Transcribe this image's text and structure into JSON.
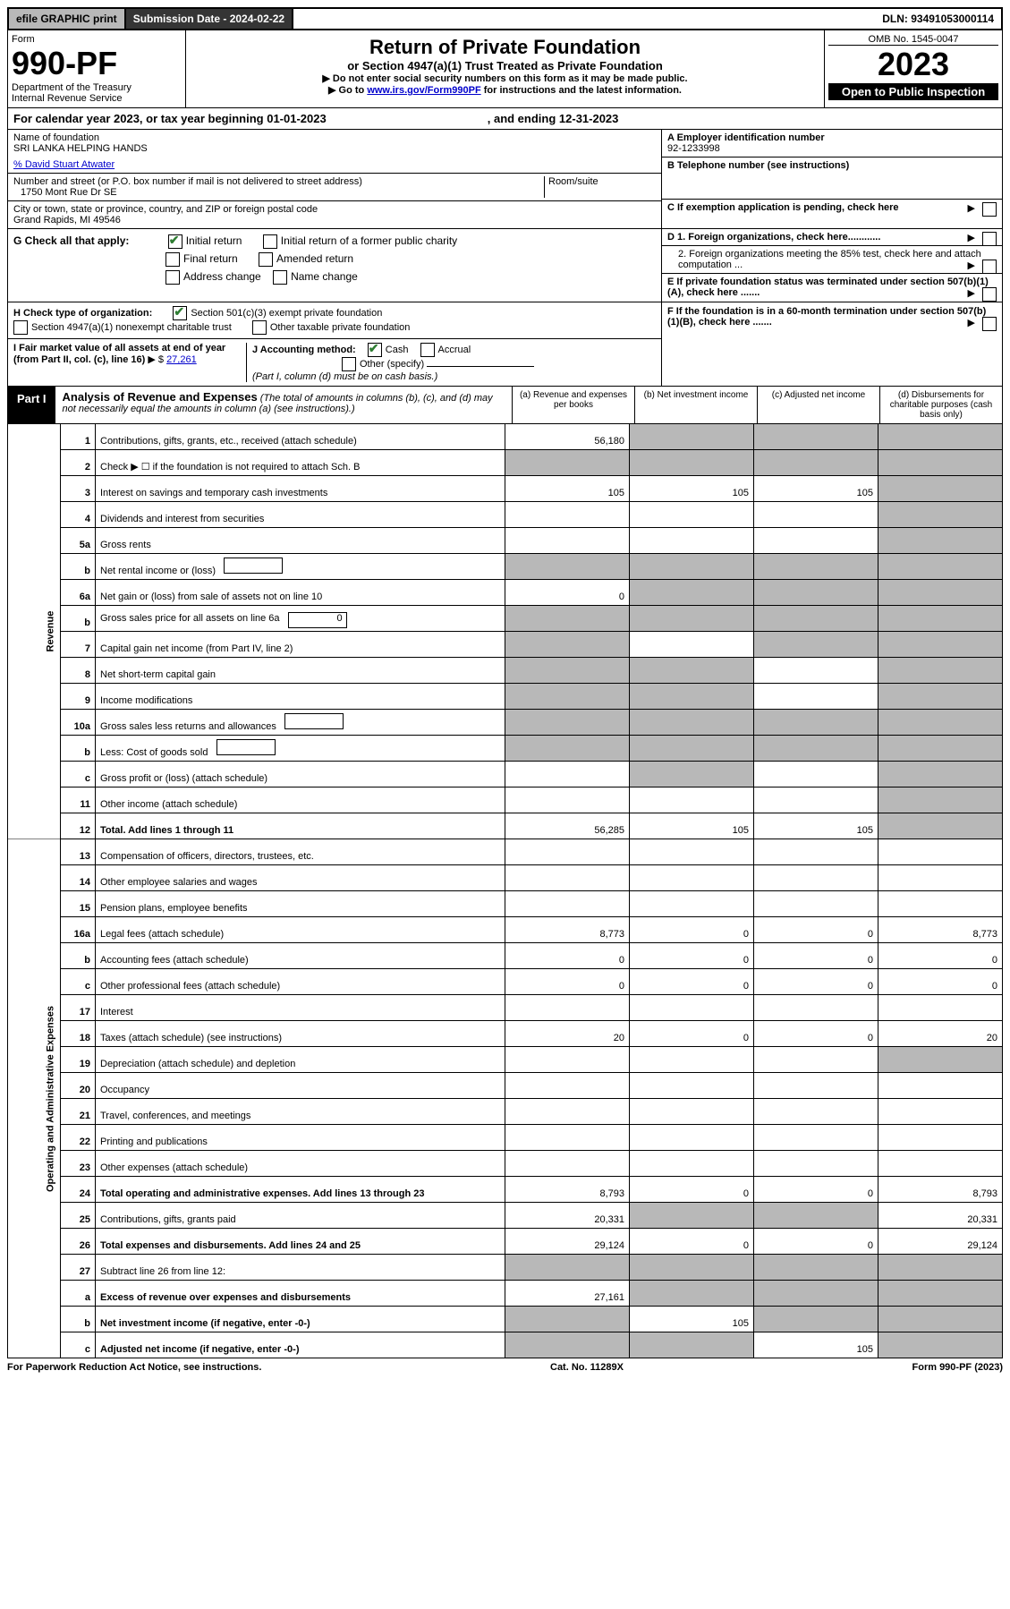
{
  "topbar": {
    "efile": "efile GRAPHIC print",
    "subdate": "Submission Date - 2024-02-22",
    "dln": "DLN: 93491053000114"
  },
  "header": {
    "form": "Form",
    "formno": "990-PF",
    "dept": "Department of the Treasury",
    "irs": "Internal Revenue Service",
    "title": "Return of Private Foundation",
    "subtitle": "or Section 4947(a)(1) Trust Treated as Private Foundation",
    "instr1": "▶ Do not enter social security numbers on this form as it may be made public.",
    "instr2_pre": "▶ Go to ",
    "instr2_link": "www.irs.gov/Form990PF",
    "instr2_post": " for instructions and the latest information.",
    "omb": "OMB No. 1545-0047",
    "year": "2023",
    "open": "Open to Public Inspection"
  },
  "cy": {
    "text": "For calendar year 2023, or tax year beginning 01-01-2023",
    "end": ", and ending 12-31-2023"
  },
  "id": {
    "name_lbl": "Name of foundation",
    "name": "SRI LANKA HELPING HANDS",
    "care": "% David Stuart Atwater",
    "addr_lbl": "Number and street (or P.O. box number if mail is not delivered to street address)",
    "addr": "1750 Mont Rue Dr SE",
    "room_lbl": "Room/suite",
    "city_lbl": "City or town, state or province, country, and ZIP or foreign postal code",
    "city": "Grand Rapids, MI  49546",
    "a_lbl": "A Employer identification number",
    "a_val": "92-1233998",
    "b_lbl": "B Telephone number (see instructions)",
    "c_lbl": "C If exemption application is pending, check here"
  },
  "g": {
    "label": "G Check all that apply:",
    "opts": [
      "Initial return",
      "Initial return of a former public charity",
      "Final return",
      "Amended return",
      "Address change",
      "Name change"
    ],
    "checked": [
      true,
      false,
      false,
      false,
      false,
      false
    ],
    "d1": "D 1. Foreign organizations, check here............",
    "d2": "2. Foreign organizations meeting the 85% test, check here and attach computation ...",
    "e": "E  If private foundation status was terminated under section 507(b)(1)(A), check here ......."
  },
  "h": {
    "label": "H Check type of organization:",
    "opt1": "Section 501(c)(3) exempt private foundation",
    "opt2": "Section 4947(a)(1) nonexempt charitable trust",
    "opt3": "Other taxable private foundation",
    "i_lbl": "I Fair market value of all assets at end of year (from Part II, col. (c), line 16)",
    "i_val": "27,261",
    "j_lbl": "J Accounting method:",
    "j_cash": "Cash",
    "j_accr": "Accrual",
    "j_other": "Other (specify)",
    "j_note": "(Part I, column (d) must be on cash basis.)",
    "f": "F  If the foundation is in a 60-month termination under section 507(b)(1)(B), check here ......."
  },
  "part1": {
    "label": "Part I",
    "title": "Analysis of Revenue and Expenses",
    "note": "(The total of amounts in columns (b), (c), and (d) may not necessarily equal the amounts in column (a) (see instructions).)",
    "cols": [
      "(a)   Revenue and expenses per books",
      "(b)   Net investment income",
      "(c)   Adjusted net income",
      "(d)   Disbursements for charitable purposes (cash basis only)"
    ]
  },
  "sidelabels": {
    "rev": "Revenue",
    "exp": "Operating and Administrative Expenses"
  },
  "lines": [
    {
      "n": "1",
      "d": "Contributions, gifts, grants, etc., received (attach schedule)",
      "a": "56,180",
      "b": null,
      "c": null,
      "dg": true,
      "bg": true,
      "cg": true
    },
    {
      "n": "2",
      "d": "Check ▶ ☐ if the foundation is not required to attach Sch. B",
      "nocols": true
    },
    {
      "n": "3",
      "d": "Interest on savings and temporary cash investments",
      "a": "105",
      "b": "105",
      "c": "105"
    },
    {
      "n": "4",
      "d": "Dividends and interest from securities",
      "a": "",
      "b": "",
      "c": ""
    },
    {
      "n": "5a",
      "d": "Gross rents",
      "a": "",
      "b": "",
      "c": ""
    },
    {
      "n": "b",
      "d": "Net rental income or (loss)",
      "inline": "",
      "nocols": true
    },
    {
      "n": "6a",
      "d": "Net gain or (loss) from sale of assets not on line 10",
      "a": "0",
      "bg": true,
      "cg": true
    },
    {
      "n": "b",
      "d": "Gross sales price for all assets on line 6a",
      "inline": "0",
      "nocols": true
    },
    {
      "n": "7",
      "d": "Capital gain net income (from Part IV, line 2)",
      "ag": true,
      "b": "",
      "cg": true
    },
    {
      "n": "8",
      "d": "Net short-term capital gain",
      "ag": true,
      "bg": true,
      "c": ""
    },
    {
      "n": "9",
      "d": "Income modifications",
      "ag": true,
      "bg": true,
      "c": ""
    },
    {
      "n": "10a",
      "d": "Gross sales less returns and allowances",
      "inline": "",
      "nocols": true
    },
    {
      "n": "b",
      "d": "Less: Cost of goods sold",
      "inline": "",
      "nocols": true
    },
    {
      "n": "c",
      "d": "Gross profit or (loss) (attach schedule)",
      "a": "",
      "bg": true,
      "c": ""
    },
    {
      "n": "11",
      "d": "Other income (attach schedule)",
      "a": "",
      "b": "",
      "c": ""
    },
    {
      "n": "12",
      "d": "Total. Add lines 1 through 11",
      "bold": true,
      "a": "56,285",
      "b": "105",
      "c": "105"
    },
    {
      "n": "13",
      "d": "Compensation of officers, directors, trustees, etc.",
      "a": "",
      "b": "",
      "c": "",
      "dd": ""
    },
    {
      "n": "14",
      "d": "Other employee salaries and wages",
      "a": "",
      "b": "",
      "c": "",
      "dd": ""
    },
    {
      "n": "15",
      "d": "Pension plans, employee benefits",
      "a": "",
      "b": "",
      "c": "",
      "dd": ""
    },
    {
      "n": "16a",
      "d": "Legal fees (attach schedule)",
      "a": "8,773",
      "b": "0",
      "c": "0",
      "dd": "8,773"
    },
    {
      "n": "b",
      "d": "Accounting fees (attach schedule)",
      "a": "0",
      "b": "0",
      "c": "0",
      "dd": "0"
    },
    {
      "n": "c",
      "d": "Other professional fees (attach schedule)",
      "a": "0",
      "b": "0",
      "c": "0",
      "dd": "0"
    },
    {
      "n": "17",
      "d": "Interest",
      "a": "",
      "b": "",
      "c": "",
      "dd": ""
    },
    {
      "n": "18",
      "d": "Taxes (attach schedule) (see instructions)",
      "a": "20",
      "b": "0",
      "c": "0",
      "dd": "20"
    },
    {
      "n": "19",
      "d": "Depreciation (attach schedule) and depletion",
      "a": "",
      "b": "",
      "c": "",
      "dg": true
    },
    {
      "n": "20",
      "d": "Occupancy",
      "a": "",
      "b": "",
      "c": "",
      "dd": ""
    },
    {
      "n": "21",
      "d": "Travel, conferences, and meetings",
      "a": "",
      "b": "",
      "c": "",
      "dd": ""
    },
    {
      "n": "22",
      "d": "Printing and publications",
      "a": "",
      "b": "",
      "c": "",
      "dd": ""
    },
    {
      "n": "23",
      "d": "Other expenses (attach schedule)",
      "a": "",
      "b": "",
      "c": "",
      "dd": ""
    },
    {
      "n": "24",
      "d": "Total operating and administrative expenses. Add lines 13 through 23",
      "bold": true,
      "a": "8,793",
      "b": "0",
      "c": "0",
      "dd": "8,793"
    },
    {
      "n": "25",
      "d": "Contributions, gifts, grants paid",
      "a": "20,331",
      "bg": true,
      "cg": true,
      "dd": "20,331"
    },
    {
      "n": "26",
      "d": "Total expenses and disbursements. Add lines 24 and 25",
      "bold": true,
      "a": "29,124",
      "b": "0",
      "c": "0",
      "dd": "29,124"
    },
    {
      "n": "27",
      "d": "Subtract line 26 from line 12:",
      "ag": true,
      "bg": true,
      "cg": true,
      "dg": true
    },
    {
      "n": "a",
      "d": "Excess of revenue over expenses and disbursements",
      "bold": true,
      "a": "27,161",
      "bg": true,
      "cg": true,
      "dg": true
    },
    {
      "n": "b",
      "d": "Net investment income (if negative, enter -0-)",
      "bold": true,
      "ag": true,
      "b": "105",
      "cg": true,
      "dg": true
    },
    {
      "n": "c",
      "d": "Adjusted net income (if negative, enter -0-)",
      "bold": true,
      "ag": true,
      "bg": true,
      "c": "105",
      "dg": true
    }
  ],
  "footer": {
    "left": "For Paperwork Reduction Act Notice, see instructions.",
    "mid": "Cat. No. 11289X",
    "right": "Form 990-PF (2023)"
  }
}
